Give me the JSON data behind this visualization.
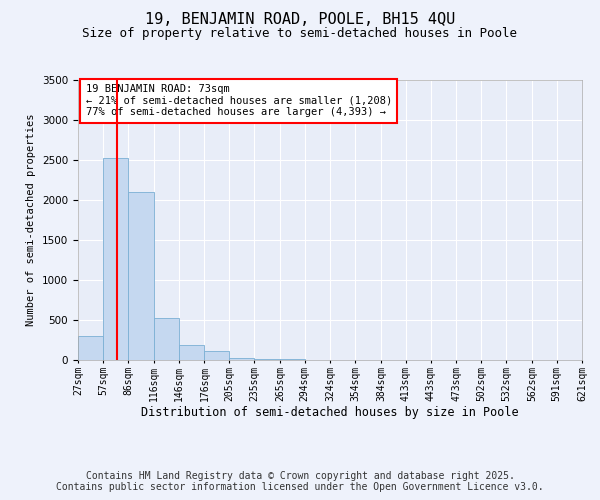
{
  "title": "19, BENJAMIN ROAD, POOLE, BH15 4QU",
  "subtitle": "Size of property relative to semi-detached houses in Poole",
  "xlabel": "Distribution of semi-detached houses by size in Poole",
  "ylabel": "Number of semi-detached properties",
  "annotation_title": "19 BENJAMIN ROAD: 73sqm",
  "annotation_line1": "← 21% of semi-detached houses are smaller (1,208)",
  "annotation_line2": "77% of semi-detached houses are larger (4,393) →",
  "footer_line1": "Contains HM Land Registry data © Crown copyright and database right 2025.",
  "footer_line2": "Contains public sector information licensed under the Open Government Licence v3.0.",
  "bar_color": "#c5d8f0",
  "bar_edge_color": "#7bafd4",
  "red_line_x": 73,
  "bin_edges": [
    27,
    57,
    86,
    116,
    146,
    176,
    205,
    235,
    265,
    294,
    324,
    354,
    384,
    413,
    443,
    473,
    502,
    532,
    562,
    591,
    621
  ],
  "bar_heights": [
    300,
    2520,
    2100,
    520,
    190,
    110,
    30,
    15,
    8,
    5,
    3,
    2,
    1,
    1,
    1,
    0,
    0,
    0,
    0,
    0
  ],
  "ylim": [
    0,
    3500
  ],
  "yticks": [
    0,
    500,
    1000,
    1500,
    2000,
    2500,
    3000,
    3500
  ],
  "background_color": "#eef2fb",
  "plot_bg_color": "#e8edf8",
  "grid_color": "#ffffff",
  "title_fontsize": 11,
  "subtitle_fontsize": 9,
  "footer_fontsize": 7
}
